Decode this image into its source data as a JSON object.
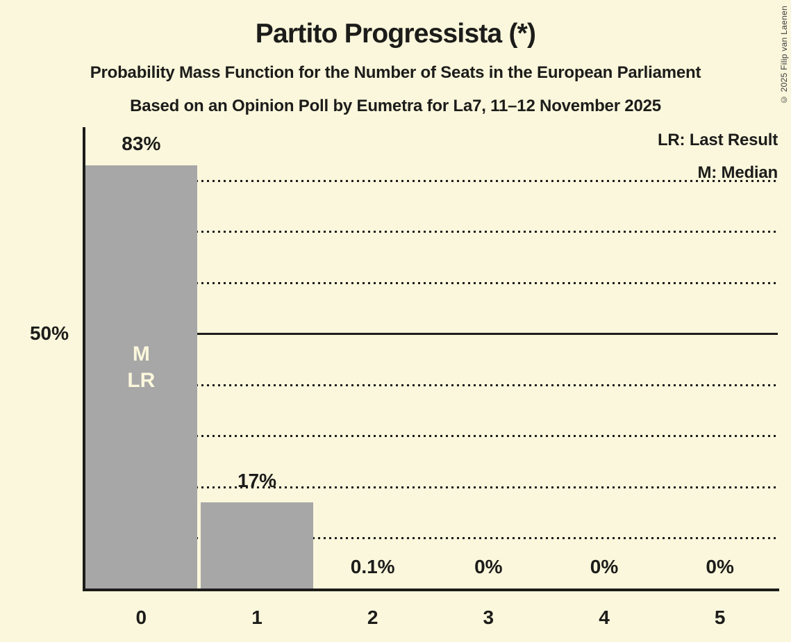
{
  "colors": {
    "background": "#FBF7DC",
    "text": "#1C1C1A",
    "bar": "#A7A7A7",
    "bar_annotation_text": "#FBF7DC"
  },
  "header": {
    "title": "Partito Progressista (*)",
    "subtitle": "Probability Mass Function for the Number of Seats in the European Parliament",
    "poll_line": "Based on an Opinion Poll by Eumetra for La7, 11–12 November 2025"
  },
  "legend": {
    "last_result": "LR: Last Result",
    "median": "M: Median"
  },
  "copyright": "© 2025 Filip van Laenen",
  "chart_data": {
    "type": "bar",
    "title": "Partito Progressista (*)",
    "subtitle": "Probability Mass Function for the Number of Seats in the European Parliament",
    "source_line": "Based on an Opinion Poll by Eumetra for La7, 11–12 November 2025",
    "categories": [
      "0",
      "1",
      "2",
      "3",
      "4",
      "5"
    ],
    "values": [
      83,
      17,
      0.1,
      0,
      0,
      0
    ],
    "value_labels": [
      "83%",
      "17%",
      "0.1%",
      "0%",
      "0%",
      "0%"
    ],
    "legend_entries": [
      "LR: Last Result",
      "M: Median"
    ],
    "y_axis": {
      "tick_label": "50%",
      "tick_pct": 50,
      "gridlines_pct": [
        10,
        20,
        30,
        40,
        50,
        60,
        70,
        80
      ],
      "solid_pct": 50,
      "ylim": [
        0,
        90
      ]
    },
    "grid": "dotted horizontal lines every 10%, solid line at 50%",
    "legend_position": "top-right",
    "annotations": [
      {
        "category_index": 0,
        "lines": [
          "M",
          "LR"
        ]
      }
    ]
  }
}
